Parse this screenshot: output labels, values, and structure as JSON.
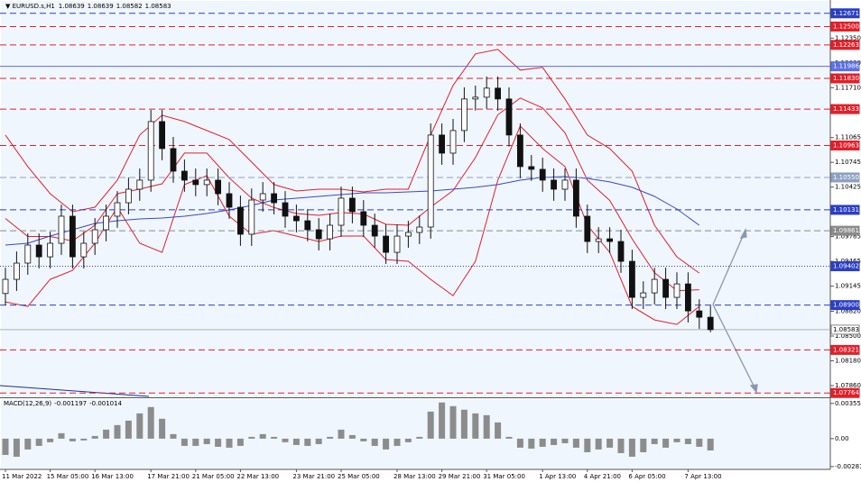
{
  "chart_data": [
    {
      "type": "candlestick",
      "title": "EURUSD.s,H1",
      "ohlc_values": [
        1.08639,
        1.08639,
        1.08582,
        1.08583
      ],
      "categories": [
        "11 Mar 2022",
        null,
        null,
        null,
        "15 Mar 05:00",
        null,
        null,
        null,
        "16 Mar 13:00",
        null,
        null,
        null,
        null,
        "17 Mar 21:00",
        null,
        null,
        null,
        "21 Mar 05:00",
        null,
        null,
        null,
        "22 Mar 13:00",
        null,
        null,
        null,
        null,
        "23 Mar 21:00",
        null,
        null,
        null,
        "25 Mar 05:00",
        null,
        null,
        null,
        null,
        "28 Mar 13:00",
        null,
        null,
        null,
        "29 Mar 21:00",
        null,
        null,
        null,
        "31 Mar 05:00",
        null,
        null,
        null,
        null,
        "1 Apr 13:00",
        null,
        null,
        null,
        "4 Apr 21:00",
        null,
        null,
        null,
        "6 Apr 05:00",
        null,
        null,
        null,
        null,
        "7 Apr 13:00",
        null,
        null
      ],
      "open": [
        1.0905,
        1.09233,
        1.09443,
        1.09676,
        1.09524,
        1.09699,
        1.10049,
        1.09524,
        1.09699,
        1.09874,
        1.10049,
        1.10223,
        1.10398,
        1.10515,
        1.11272,
        1.10923,
        1.10631,
        1.10515,
        1.10457,
        1.10515,
        1.1034,
        1.10165,
        1.09816,
        1.10258,
        1.1034,
        1.10223,
        1.10049,
        1.0999,
        1.09874,
        1.09757,
        1.09932,
        1.10282,
        1.10107,
        1.09932,
        1.09792,
        1.09582,
        1.09792,
        1.09839,
        1.09909,
        1.11098,
        1.10864,
        1.11156,
        1.11564,
        1.11587,
        1.11704,
        1.11564,
        1.11098,
        1.1069,
        1.10655,
        1.10515,
        1.10398,
        1.10515,
        1.10049,
        1.09722,
        1.09757,
        1.09722,
        1.09466,
        1.09,
        1.09058,
        1.09233,
        1.09,
        1.09174,
        1.08825,
        1.08743
      ],
      "high": [
        1.09383,
        1.09593,
        1.09826,
        1.09826,
        1.09849,
        1.10199,
        1.10199,
        1.09849,
        1.10024,
        1.10199,
        1.10373,
        1.10548,
        1.10665,
        1.11422,
        1.11422,
        1.11073,
        1.10781,
        1.10665,
        1.10665,
        1.10665,
        1.1049,
        1.10315,
        1.10408,
        1.1049,
        1.1049,
        1.10373,
        1.10199,
        1.1014,
        1.10024,
        1.10082,
        1.10432,
        1.10432,
        1.10257,
        1.10082,
        1.09942,
        1.09942,
        1.09989,
        1.10059,
        1.11248,
        1.11248,
        1.11306,
        1.11714,
        1.11737,
        1.11854,
        1.11854,
        1.11714,
        1.11248,
        1.1084,
        1.10805,
        1.10665,
        1.10665,
        1.10665,
        1.10199,
        1.09907,
        1.09907,
        1.09872,
        1.09616,
        1.09208,
        1.09383,
        1.09383,
        1.09324,
        1.09324,
        1.08975,
        1.08893
      ],
      "low": [
        1.089,
        1.09083,
        1.09293,
        1.09374,
        1.09374,
        1.09549,
        1.09374,
        1.09374,
        1.09549,
        1.09724,
        1.09899,
        1.10073,
        1.10248,
        1.10365,
        1.10773,
        1.10481,
        1.10365,
        1.10307,
        1.10307,
        1.1019,
        1.10015,
        1.09666,
        1.09666,
        1.10108,
        1.10073,
        1.09899,
        1.0984,
        1.09724,
        1.09607,
        1.09607,
        1.09782,
        1.09957,
        1.09782,
        1.09642,
        1.09432,
        1.09432,
        1.09642,
        1.09689,
        1.09759,
        1.10714,
        1.10714,
        1.11006,
        1.11414,
        1.11437,
        1.11414,
        1.10948,
        1.1054,
        1.10505,
        1.10365,
        1.10248,
        1.10248,
        1.09899,
        1.09572,
        1.09572,
        1.09572,
        1.09316,
        1.0885,
        1.0885,
        1.08908,
        1.0885,
        1.0885,
        1.08675,
        1.08593,
        1.0855
      ],
      "close": [
        1.09233,
        1.09443,
        1.09676,
        1.09524,
        1.09699,
        1.10049,
        1.09524,
        1.09699,
        1.09874,
        1.10049,
        1.10223,
        1.10398,
        1.10515,
        1.11272,
        1.10923,
        1.10631,
        1.10515,
        1.10457,
        1.10515,
        1.1034,
        1.10165,
        1.09816,
        1.10258,
        1.1034,
        1.10223,
        1.10049,
        1.0999,
        1.09874,
        1.09757,
        1.09932,
        1.10282,
        1.10107,
        1.09932,
        1.09792,
        1.09582,
        1.09792,
        1.09839,
        1.09909,
        1.11098,
        1.10864,
        1.11156,
        1.11564,
        1.11587,
        1.11704,
        1.11564,
        1.11098,
        1.1069,
        1.10655,
        1.10515,
        1.10398,
        1.10515,
        1.10049,
        1.09722,
        1.09757,
        1.09722,
        1.09466,
        1.09,
        1.09058,
        1.09233,
        1.09,
        1.09174,
        1.08825,
        1.08743,
        1.08583
      ],
      "ylim": [
        1.0772,
        1.1275
      ],
      "yticks": [
        {
          "value": 1.1235,
          "label": "1.12350"
        },
        {
          "value": 1.1203,
          "label": "1.12030"
        },
        {
          "value": 1.1171,
          "label": "1.11710"
        },
        1.11065,
        1.10745,
        1.10425,
        1.09785,
        1.09465,
        1.09145,
        {
          "value": 1.0882,
          "label": "1.08820"
        },
        {
          "value": 1.085,
          "label": "1.08500"
        },
        {
          "value": 1.0818,
          "label": "1.08180"
        },
        {
          "value": 1.0786,
          "label": "1.07860"
        }
      ],
      "levels": [
        {
          "value": 1.12671,
          "color": "#2b3fc4",
          "style": "dashed"
        },
        {
          "value": 1.125,
          "label": "1.12500",
          "color": "#e0202a",
          "style": "dashed"
        },
        {
          "value": 1.12263,
          "color": "#e0202a",
          "style": "dashed"
        },
        {
          "value": 1.11986,
          "color": "#5a6fe0",
          "style": "solid"
        },
        {
          "value": 1.1183,
          "label": "1.11830",
          "color": "#e0202a",
          "style": "dashed"
        },
        {
          "value": 1.11433,
          "color": "#e0202a",
          "style": "dashed"
        },
        {
          "value": 1.10963,
          "color": "#e0202a",
          "style": "dashed"
        },
        {
          "value": 1.1055,
          "label": "1.10550",
          "color": "#8fa0c0",
          "style": "dashed"
        },
        {
          "value": 1.10131,
          "color": "#2b3fc4",
          "style": "dashed"
        },
        {
          "value": 1.09861,
          "color": "#8a8a8a",
          "style": "dashed"
        },
        {
          "value": 1.09402,
          "color": "#2b3fc4",
          "style": "dotted"
        },
        {
          "value": 1.089,
          "label": "1.08900",
          "color": "#2b3fc4",
          "style": "dashed"
        },
        {
          "value": 1.08583,
          "color": "#b0b0b0",
          "style": "solid",
          "fill": "#ffffff"
        },
        {
          "value": 1.08321,
          "color": "#e0202a",
          "style": "dashed"
        },
        {
          "value": 1.07764,
          "color": "#e0202a",
          "style": "dashed"
        }
      ],
      "indicators": {
        "x": [
          0,
          2,
          4,
          6,
          8,
          10,
          12,
          14,
          16,
          18,
          20,
          22,
          24,
          26,
          28,
          30,
          32,
          34,
          36,
          38,
          40,
          42,
          44,
          46,
          48,
          50,
          52,
          54,
          56,
          58,
          60,
          62
        ],
        "lines": [
          {
            "color": "#e0202a",
            "values": [
              1.11098,
              1.1069,
              1.1034,
              1.10107,
              1.10165,
              1.10515,
              1.11098,
              1.11354,
              1.11272,
              1.11156,
              1.11039,
              1.10748,
              1.10457,
              1.10375,
              1.10398,
              1.10398,
              1.10363,
              1.10398,
              1.10398,
              1.11098,
              1.11739,
              1.12147,
              1.12205,
              1.11937,
              1.11972,
              1.11564,
              1.11098,
              1.10923,
              1.10631,
              1.09932,
              1.09524,
              1.09314
            ]
          },
          {
            "color": "#e0202a",
            "values": [
              1.1002,
              1.09787,
              1.09787,
              1.09728,
              1.09932,
              1.1034,
              1.10399,
              1.10468,
              1.10865,
              1.10865,
              1.10544,
              1.10282,
              1.1016,
              1.10084,
              1.1006,
              1.10095,
              1.10078,
              1.09944,
              1.09932,
              1.10166,
              1.10381,
              1.10807,
              1.1136,
              1.11576,
              1.11448,
              1.11127,
              1.10515,
              1.10253,
              1.09757,
              1.0932,
              1.09087,
              1.09099
            ]
          },
          {
            "color": "#e0202a",
            "values": [
              1.08941,
              1.08883,
              1.09233,
              1.09349,
              1.09699,
              1.10165,
              1.09699,
              1.09582,
              1.10457,
              1.10573,
              1.10049,
              1.09816,
              1.09862,
              1.09792,
              1.09722,
              1.09792,
              1.09792,
              1.09489,
              1.09466,
              1.09233,
              1.09023,
              1.09466,
              1.10515,
              1.11214,
              1.10923,
              1.1069,
              1.09932,
              1.09582,
              1.08883,
              1.08708,
              1.0865,
              1.08883
            ]
          },
          {
            "color": "#3a48c8",
            "values": [
              1.09676,
              1.09699,
              1.09792,
              1.09874,
              1.09955,
              1.0999,
              1.10014,
              1.10025,
              1.10049,
              1.10084,
              1.1013,
              1.10188,
              1.10258,
              1.10282,
              1.10305,
              1.10328,
              1.10352,
              1.10352,
              1.10363,
              1.10375,
              1.10398,
              1.10422,
              1.10457,
              1.10515,
              1.1055,
              1.10561,
              1.10538,
              1.10492,
              1.10422,
              1.10305,
              1.10142,
              1.09932
            ]
          }
        ]
      }
    },
    {
      "type": "bar",
      "title": "MACD(12,26,9)",
      "readings": [
        -0.001197,
        -0.001014
      ],
      "color": "#8c8c8c",
      "values": [
        -0.00164,
        -0.00182,
        -0.00109,
        -0.00073,
        -0.00036,
        0.00055,
        -0.00027,
        -0.00018,
        0.00027,
        0.00091,
        0.00137,
        0.00182,
        0.00255,
        0.00319,
        0.00201,
        0.00046,
        -0.00073,
        -0.00073,
        -0.00055,
        -0.00082,
        -0.00091,
        -0.00073,
        0.00018,
        0.00046,
        0.00018,
        -0.00036,
        -0.00064,
        -0.00073,
        -0.00055,
        0.00018,
        0.00091,
        0.00036,
        -0.00027,
        -0.00073,
        -0.00109,
        -0.00073,
        -0.00036,
        0.00018,
        0.00273,
        0.00365,
        0.00328,
        0.00292,
        0.00255,
        0.00237,
        0.00164,
        0.00018,
        -0.00091,
        -0.001,
        -0.00082,
        -0.00064,
        -0.00046,
        -0.00091,
        -0.00137,
        -0.00109,
        -0.00091,
        -0.00146,
        -0.00182,
        -0.00137,
        -0.00055,
        -0.00091,
        -0.00036,
        -0.00055,
        -0.00082,
        -0.00119
      ],
      "ylim": [
        -0.0031,
        0.0039
      ],
      "yticks": [
        0.0035551,
        {
          "value": 0,
          "label": "0.00"
        },
        -0.002814
      ]
    }
  ]
}
